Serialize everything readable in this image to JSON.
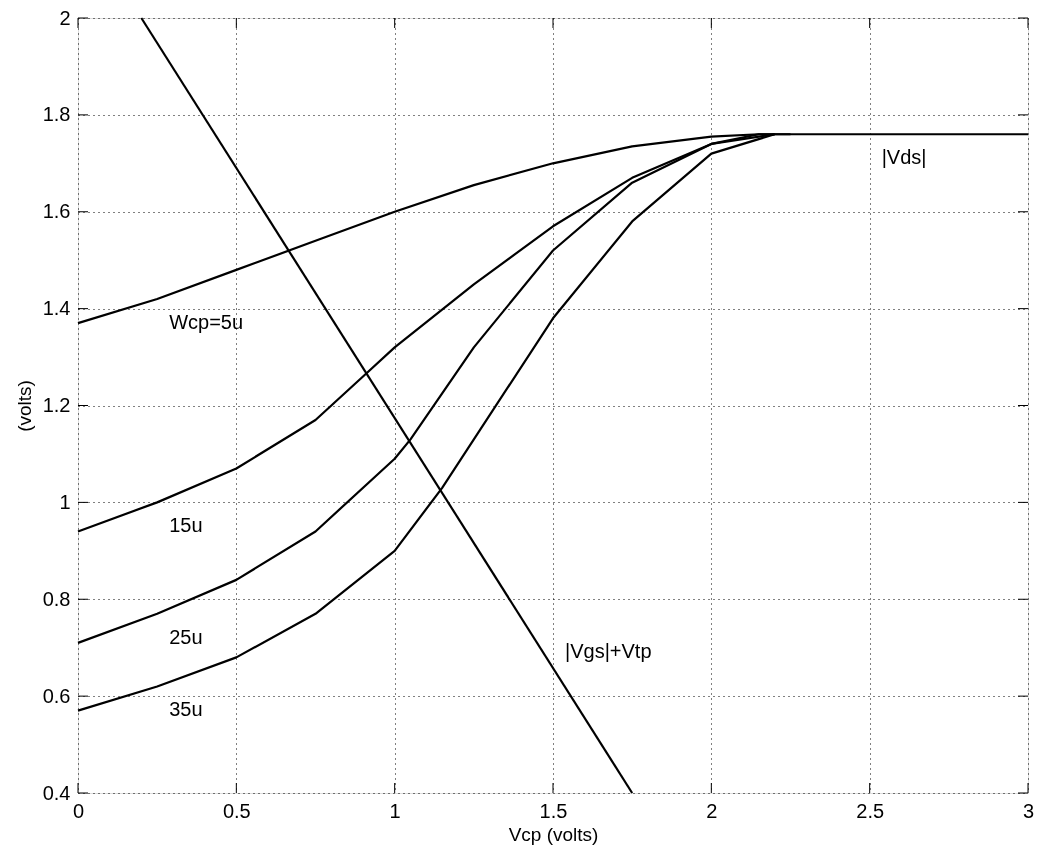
{
  "chart_data": {
    "type": "line",
    "xlabel": "Vcp (volts)",
    "ylabel": "(volts)",
    "xlim": [
      0,
      3
    ],
    "ylim": [
      0.4,
      2
    ],
    "xticks": [
      0,
      0.5,
      1,
      1.5,
      2,
      2.5,
      3
    ],
    "yticks": [
      0.4,
      0.6,
      0.8,
      1,
      1.2,
      1.4,
      1.6,
      1.8,
      2
    ],
    "grid": true,
    "line_style": "solid",
    "marker": "none",
    "series": [
      {
        "color": "#000000",
        "x": [
          0,
          0.25,
          0.5,
          0.75,
          1.0,
          1.25,
          1.5,
          1.75,
          2.0,
          2.15,
          2.25,
          3
        ],
        "values": [
          1.37,
          1.42,
          1.48,
          1.54,
          1.6,
          1.655,
          1.7,
          1.735,
          1.755,
          1.76,
          1.76,
          1.76
        ]
      },
      {
        "color": "#000000",
        "x": [
          0,
          0.25,
          0.5,
          0.75,
          0.9,
          1.0,
          1.25,
          1.5,
          1.75,
          2.0,
          2.15,
          2.25
        ],
        "values": [
          0.94,
          1.0,
          1.07,
          1.17,
          1.26,
          1.32,
          1.45,
          1.57,
          1.67,
          1.74,
          1.76,
          1.76
        ]
      },
      {
        "color": "#000000",
        "x": [
          0,
          0.25,
          0.5,
          0.75,
          1.0,
          1.05,
          1.25,
          1.5,
          1.75,
          2.0,
          2.2
        ],
        "values": [
          0.71,
          0.77,
          0.84,
          0.94,
          1.09,
          1.13,
          1.32,
          1.52,
          1.66,
          1.74,
          1.76
        ]
      },
      {
        "color": "#000000",
        "x": [
          0,
          0.25,
          0.5,
          0.75,
          1.0,
          1.15,
          1.25,
          1.5,
          1.75,
          2.0,
          2.2
        ],
        "values": [
          0.57,
          0.62,
          0.68,
          0.77,
          0.9,
          1.03,
          1.13,
          1.38,
          1.58,
          1.72,
          1.76
        ]
      },
      {
        "color": "#000000",
        "x": [
          0.2,
          1.75
        ],
        "values": [
          2.0,
          0.4
        ]
      }
    ],
    "annotations": [
      {
        "text": "Wcp=5u",
        "x": 0.25,
        "y": 1.42
      },
      {
        "text": "15u",
        "x": 0.25,
        "y": 1.0
      },
      {
        "text": "25u",
        "x": 0.25,
        "y": 0.77
      },
      {
        "text": "35u",
        "x": 0.25,
        "y": 0.62
      },
      {
        "text": "|Vds|",
        "x": 2.5,
        "y": 1.76
      },
      {
        "text": "|Vgs|+Vtp",
        "x": 1.5,
        "y": 0.658
      }
    ]
  }
}
